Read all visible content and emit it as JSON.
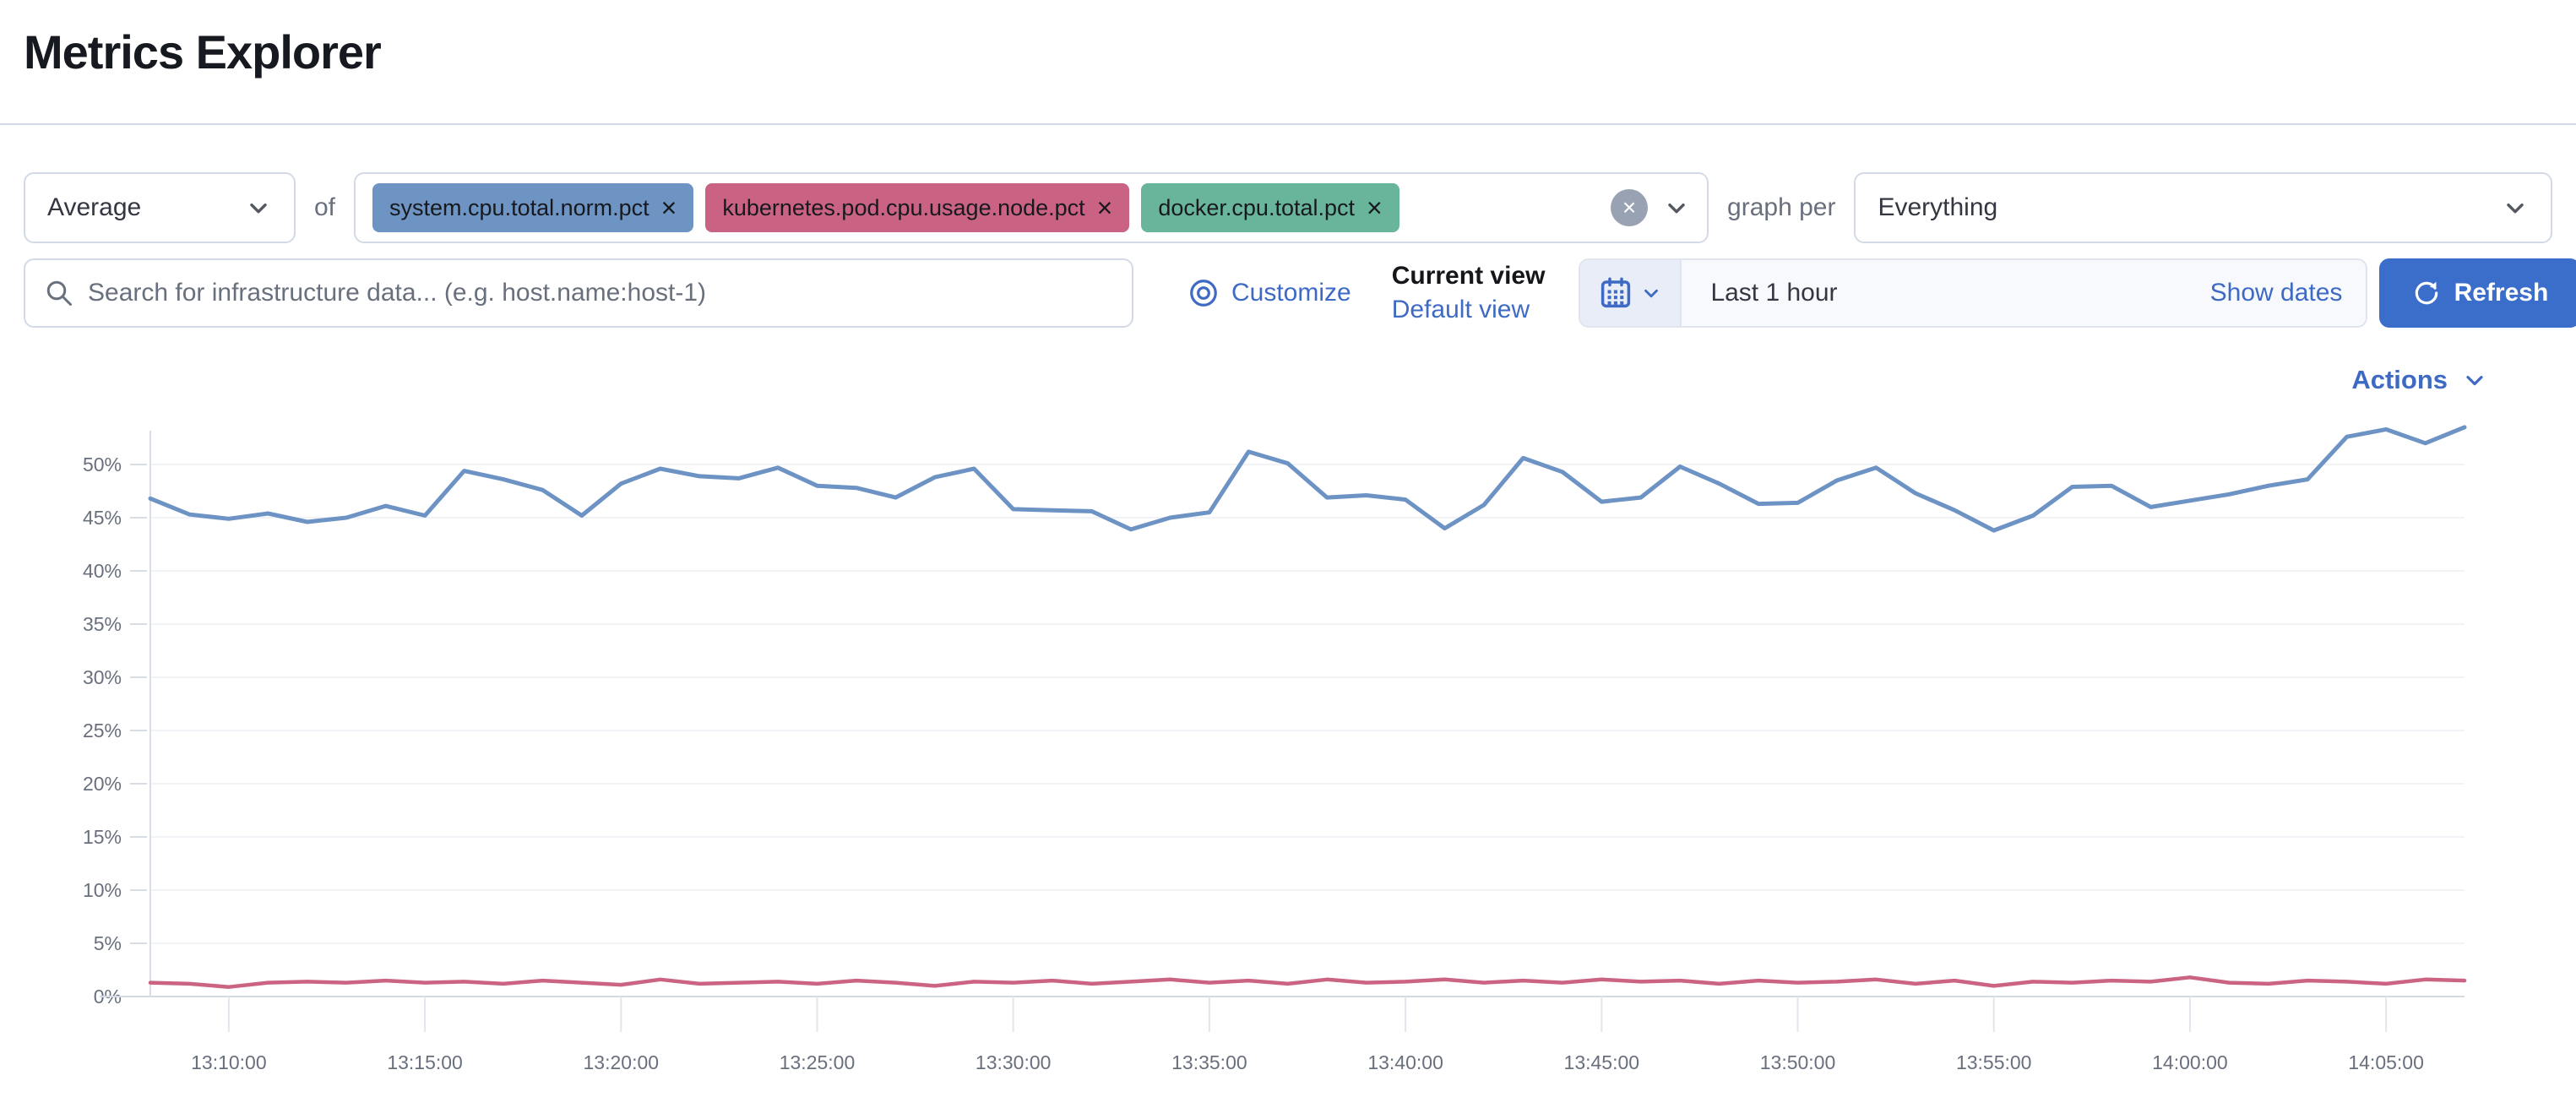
{
  "page": {
    "title": "Metrics Explorer"
  },
  "colors": {
    "accent": "#3e6ac4",
    "refresh_button": "#3b6eca",
    "series_blue": "#6d93c4",
    "series_pink": "#cb6383",
    "pill_blue": "#6d94c3",
    "pill_pink": "#ca6283",
    "pill_green": "#68b59b"
  },
  "controls": {
    "aggregation": {
      "value": "Average"
    },
    "of_label": "of",
    "metrics": [
      {
        "label": "system.cpu.total.norm.pct",
        "remove": "×",
        "color": "#6d94c3"
      },
      {
        "label": "kubernetes.pod.cpu.usage.node.pct",
        "remove": "×",
        "color": "#ca6283"
      },
      {
        "label": "docker.cpu.total.pct",
        "remove": "×",
        "color": "#68b59b"
      }
    ],
    "clear_all": "×",
    "graph_per_label": "graph per",
    "group_by": {
      "value": "Everything"
    }
  },
  "toolbar": {
    "search": {
      "placeholder": "Search for infrastructure data... (e.g. host.name:host-1)"
    },
    "customize_label": "Customize",
    "current_view_label": "Current view",
    "default_view_label": "Default view",
    "time_range": {
      "value": "Last 1 hour",
      "show_dates_label": "Show dates"
    },
    "refresh_label": "Refresh"
  },
  "chart_header": {
    "actions_label": "Actions"
  },
  "chart_data": {
    "type": "line",
    "title": "",
    "xlabel": "",
    "ylabel": "",
    "ylim": [
      0,
      55
    ],
    "y_ticks": [
      0,
      5,
      10,
      15,
      20,
      25,
      30,
      35,
      40,
      45,
      50
    ],
    "y_tick_suffix": "%",
    "grid": true,
    "legend": "none",
    "x_ticks": [
      {
        "label": "13:10:00",
        "t": 2
      },
      {
        "label": "13:15:00",
        "t": 7
      },
      {
        "label": "13:20:00",
        "t": 12
      },
      {
        "label": "13:25:00",
        "t": 17
      },
      {
        "label": "13:30:00",
        "t": 22
      },
      {
        "label": "13:35:00",
        "t": 27
      },
      {
        "label": "13:40:00",
        "t": 32
      },
      {
        "label": "13:45:00",
        "t": 37
      },
      {
        "label": "13:50:00",
        "t": 42
      },
      {
        "label": "13:55:00",
        "t": 47
      },
      {
        "label": "14:00:00",
        "t": 52
      },
      {
        "label": "14:05:00",
        "t": 57
      }
    ],
    "x_range_minutes": [
      0,
      59
    ],
    "series": [
      {
        "name": "system.cpu.total.norm.pct (avg)",
        "color": "#6d93c4",
        "values": [
          46.8,
          45.3,
          44.9,
          45.4,
          44.6,
          45.0,
          46.1,
          45.2,
          49.4,
          48.6,
          47.6,
          45.2,
          48.2,
          49.6,
          48.9,
          48.7,
          49.7,
          48.0,
          47.8,
          46.9,
          48.8,
          49.6,
          45.8,
          45.7,
          45.6,
          43.9,
          45.0,
          45.5,
          51.2,
          50.1,
          46.9,
          47.1,
          46.7,
          44.0,
          46.2,
          50.6,
          49.3,
          46.5,
          46.9,
          49.8,
          48.2,
          46.3,
          46.4,
          48.5,
          49.7,
          47.3,
          45.7,
          43.8,
          45.2,
          47.9,
          48.0,
          46.0,
          46.6,
          47.2,
          48.0,
          48.6,
          52.6,
          53.3,
          52.0,
          53.5
        ]
      },
      {
        "name": "kubernetes.pod.cpu.usage.node.pct (avg)",
        "color": "#cb6383",
        "values": [
          1.3,
          1.2,
          0.9,
          1.3,
          1.4,
          1.3,
          1.5,
          1.3,
          1.4,
          1.2,
          1.5,
          1.3,
          1.1,
          1.6,
          1.2,
          1.3,
          1.4,
          1.2,
          1.5,
          1.3,
          1.0,
          1.4,
          1.3,
          1.5,
          1.2,
          1.4,
          1.6,
          1.3,
          1.5,
          1.2,
          1.6,
          1.3,
          1.4,
          1.6,
          1.3,
          1.5,
          1.3,
          1.6,
          1.4,
          1.5,
          1.2,
          1.5,
          1.3,
          1.4,
          1.6,
          1.2,
          1.5,
          1.0,
          1.4,
          1.3,
          1.5,
          1.4,
          1.8,
          1.3,
          1.2,
          1.5,
          1.4,
          1.2,
          1.6,
          1.5
        ]
      }
    ]
  }
}
